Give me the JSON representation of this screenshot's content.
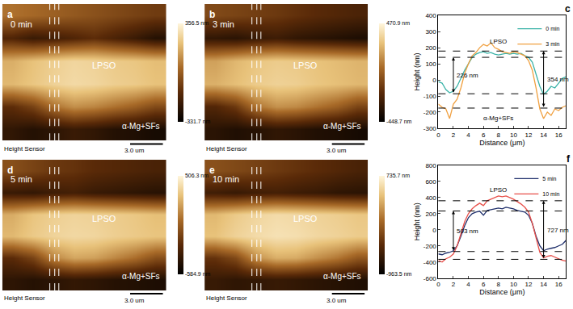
{
  "chart_data": [
    {
      "type": "heatmap",
      "panel": "a",
      "label": "0 min",
      "annotations": [
        "LPSO",
        "α-Mg+SFs"
      ],
      "caption": "Height Sensor",
      "scale_bar": "3.0 um",
      "tick_labels": false,
      "z": [
        [
          60,
          40,
          20,
          0,
          -20,
          -40,
          -60,
          -80
        ],
        [
          -150,
          -200,
          -180,
          -150,
          -120,
          -160,
          -200,
          -250
        ],
        [
          180,
          220,
          250,
          270,
          260,
          240,
          230,
          210
        ],
        [
          200,
          230,
          260,
          280,
          270,
          250,
          240,
          220
        ],
        [
          -120,
          -60,
          60,
          120,
          100,
          60,
          20,
          -40
        ],
        [
          -220,
          -250,
          -230,
          -200,
          -220,
          -250,
          -260,
          -280
        ]
      ],
      "color_range": [
        -331.7,
        356.5
      ],
      "color_ticks": [
        {
          "value": 356.5,
          "label": "356.5 nm"
        },
        {
          "value": -331.7,
          "label": "-331.7 nm"
        }
      ]
    },
    {
      "type": "heatmap",
      "panel": "b",
      "label": "3 min",
      "annotations": [
        "LPSO",
        "α-Mg+SFs"
      ],
      "caption": "Height Sensor",
      "scale_bar": "3.0 um",
      "tick_labels": false,
      "z": [
        [
          -60,
          -80,
          -100,
          -120,
          -150,
          -180,
          -200,
          -220
        ],
        [
          -300,
          -320,
          -280,
          -260,
          -300,
          -320,
          -340,
          -360
        ],
        [
          200,
          260,
          300,
          320,
          310,
          290,
          270,
          250
        ],
        [
          240,
          280,
          320,
          340,
          330,
          300,
          280,
          260
        ],
        [
          -200,
          -120,
          80,
          160,
          140,
          80,
          20,
          -80
        ],
        [
          -320,
          -350,
          -330,
          -300,
          -320,
          -350,
          -360,
          -380
        ]
      ],
      "color_range": [
        -448.7,
        470.9
      ],
      "color_ticks": [
        {
          "value": 470.9,
          "label": "470.9 nm"
        },
        {
          "value": -448.7,
          "label": "-448.7 nm"
        }
      ]
    },
    {
      "type": "line",
      "panel": "c",
      "x_label": "Distance (μm)",
      "y_label": "Height (nm)",
      "legend": "upper right",
      "x": [
        0,
        0.5,
        1,
        1.5,
        2,
        2.5,
        3,
        3.5,
        4,
        4.5,
        5,
        5.5,
        6,
        6.5,
        7,
        7.5,
        8,
        8.5,
        9,
        9.5,
        10,
        10.5,
        11,
        11.5,
        12,
        12.5,
        13,
        13.5,
        14,
        14.5,
        15,
        15.5,
        16,
        16.5,
        17
      ],
      "series": [
        {
          "name": "0 min",
          "color": "#3bb3a8",
          "values": [
            -10,
            -20,
            -60,
            -80,
            -70,
            -40,
            10,
            60,
            100,
            140,
            160,
            170,
            175,
            165,
            170,
            160,
            155,
            160,
            165,
            160,
            165,
            160,
            165,
            150,
            140,
            110,
            40,
            -40,
            -90,
            -70,
            -40,
            -50,
            -20,
            10,
            20
          ]
        },
        {
          "name": "3 min",
          "color": "#f0a040",
          "values": [
            -150,
            -170,
            -180,
            -240,
            -150,
            -120,
            -50,
            40,
            100,
            150,
            170,
            200,
            220,
            210,
            230,
            200,
            190,
            175,
            170,
            165,
            175,
            170,
            160,
            150,
            120,
            60,
            -50,
            -180,
            -240,
            -200,
            -220,
            -180,
            -190,
            -170,
            -160
          ]
        }
      ],
      "xlim": [
        0,
        17
      ],
      "xticks": [
        0,
        2,
        4,
        6,
        8,
        10,
        12,
        14,
        16
      ],
      "ylim": [
        -300,
        400
      ],
      "yticks": [
        -300,
        -200,
        -100,
        0,
        100,
        200,
        300,
        400
      ],
      "reference_lines": [
        179,
        140,
        -86,
        -175
      ],
      "measurements": [
        {
          "label": "226 nm",
          "x": 2,
          "from": -86,
          "to": 140
        },
        {
          "label": "354 nm",
          "x": 14,
          "from": -175,
          "to": 179
        }
      ],
      "annotations": [
        {
          "text": "LPSO",
          "x": 8,
          "y": 240
        },
        {
          "text": "α-Mg+SFs",
          "x": 8,
          "y": -240
        }
      ]
    },
    {
      "type": "heatmap",
      "panel": "d",
      "label": "5 min",
      "annotations": [
        "LPSO",
        "α-Mg+SFs"
      ],
      "caption": "Height Sensor",
      "scale_bar": "3.0 um",
      "tick_labels": false,
      "z": [
        [
          -100,
          -150,
          -200,
          -220,
          -260,
          -280,
          -300,
          -320
        ],
        [
          -380,
          -400,
          -360,
          -340,
          -380,
          -400,
          -420,
          -440
        ],
        [
          220,
          300,
          340,
          360,
          350,
          330,
          310,
          280
        ],
        [
          260,
          320,
          360,
          380,
          370,
          340,
          320,
          300
        ],
        [
          -260,
          -150,
          100,
          200,
          180,
          100,
          20,
          -100
        ],
        [
          -420,
          -450,
          -430,
          -400,
          -420,
          -450,
          -460,
          -480
        ]
      ],
      "color_range": [
        -584.9,
        506.3
      ],
      "color_ticks": [
        {
          "value": 506.3,
          "label": "506.3 nm"
        },
        {
          "value": -584.9,
          "label": "-584.9 nm"
        }
      ]
    },
    {
      "type": "heatmap",
      "panel": "e",
      "label": "10 min",
      "annotations": [
        "LPSO",
        "α-Mg+SFs"
      ],
      "caption": "Height Sensor",
      "scale_bar": "3.0 um",
      "tick_labels": false,
      "z": [
        [
          -200,
          -250,
          -300,
          -350,
          -400,
          -450,
          -500,
          -550
        ],
        [
          -600,
          -650,
          -600,
          -580,
          -620,
          -650,
          -700,
          -720
        ],
        [
          350,
          450,
          520,
          560,
          540,
          500,
          470,
          430
        ],
        [
          400,
          500,
          560,
          600,
          580,
          530,
          500,
          460
        ],
        [
          -400,
          -250,
          150,
          300,
          280,
          150,
          30,
          -150
        ],
        [
          -650,
          -700,
          -680,
          -650,
          -680,
          -720,
          -750,
          -780
        ]
      ],
      "color_range": [
        -963.5,
        735.7
      ],
      "color_ticks": [
        {
          "value": 735.7,
          "label": "735.7 nm"
        },
        {
          "value": -963.5,
          "label": "-963.5 nm"
        }
      ]
    },
    {
      "type": "line",
      "panel": "f",
      "x_label": "Distance (μm)",
      "y_label": "Height (nm)",
      "legend": "upper right",
      "x": [
        0,
        0.5,
        1,
        1.5,
        2,
        2.5,
        3,
        3.5,
        4,
        4.5,
        5,
        5.5,
        6,
        6.5,
        7,
        7.5,
        8,
        8.5,
        9,
        9.5,
        10,
        10.5,
        11,
        11.5,
        12,
        12.5,
        13,
        13.5,
        14,
        14.5,
        15,
        15.5,
        16,
        16.5,
        17
      ],
      "series": [
        {
          "name": "5 min",
          "color": "#1f2f6b",
          "values": [
            -300,
            -310,
            -290,
            -280,
            -260,
            -200,
            -80,
            50,
            150,
            200,
            220,
            230,
            180,
            240,
            250,
            260,
            270,
            260,
            280,
            270,
            260,
            240,
            230,
            220,
            180,
            80,
            -80,
            -200,
            -260,
            -240,
            -230,
            -220,
            -200,
            -180,
            -130
          ]
        },
        {
          "name": "10 min",
          "color": "#e8504a",
          "values": [
            -380,
            -400,
            -360,
            -340,
            -300,
            -200,
            -50,
            100,
            200,
            260,
            300,
            330,
            300,
            360,
            380,
            400,
            420,
            410,
            420,
            400,
            380,
            350,
            320,
            280,
            220,
            80,
            -100,
            -280,
            -350,
            -330,
            -320,
            -340,
            -360,
            -380,
            -390
          ]
        }
      ],
      "xlim": [
        0,
        17
      ],
      "xticks": [
        0,
        2,
        4,
        6,
        8,
        10,
        12,
        14,
        16
      ],
      "ylim": [
        -600,
        800
      ],
      "yticks": [
        -600,
        -400,
        -200,
        0,
        200,
        400,
        600,
        800
      ],
      "reference_lines": [
        360,
        233,
        -270,
        -367
      ],
      "measurements": [
        {
          "label": "503 nm",
          "x": 2,
          "from": -270,
          "to": 233
        },
        {
          "label": "727 nm",
          "x": 14,
          "from": -367,
          "to": 360
        }
      ],
      "annotations": [
        {
          "text": "LPSO",
          "x": 8,
          "y": 490
        }
      ]
    }
  ]
}
